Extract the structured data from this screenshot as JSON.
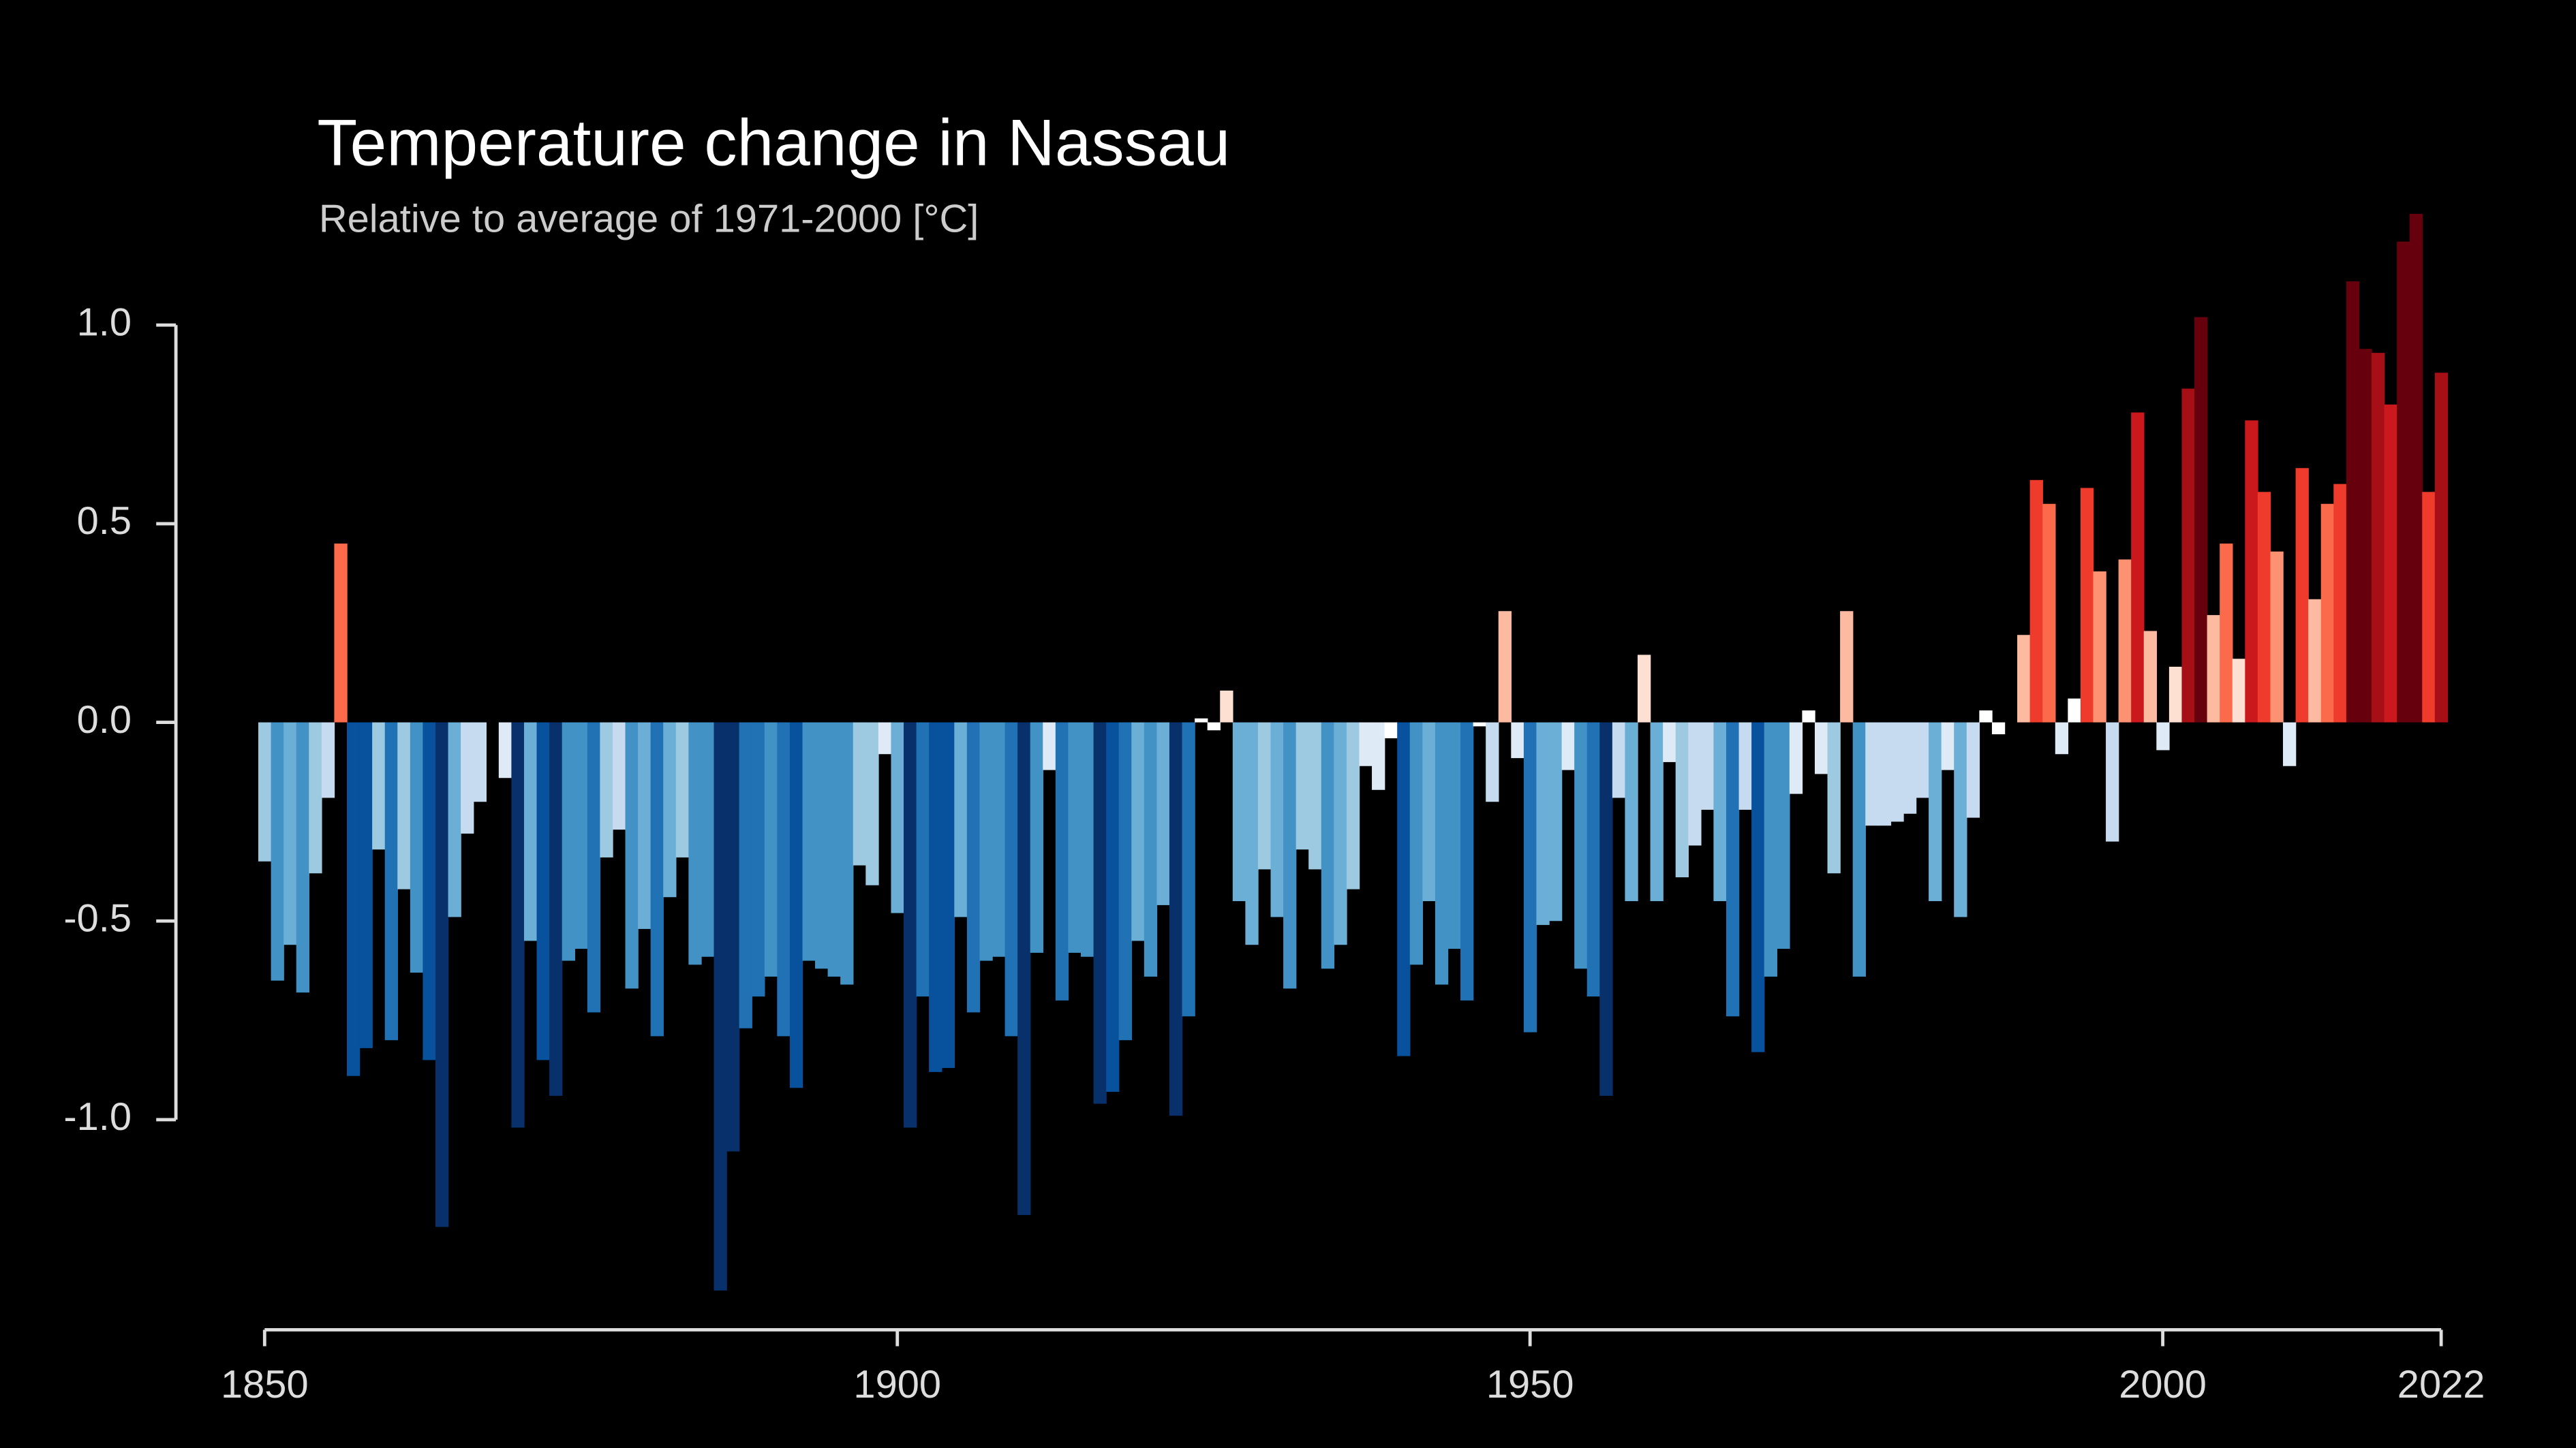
{
  "chart_data": {
    "type": "bar",
    "title": "Temperature change in Nassau",
    "subtitle": "Relative to average of 1971-2000  [°C]",
    "x": [
      1850,
      1851,
      1852,
      1853,
      1854,
      1855,
      1856,
      1857,
      1858,
      1859,
      1860,
      1861,
      1862,
      1863,
      1864,
      1865,
      1866,
      1867,
      1868,
      1869,
      1870,
      1871,
      1872,
      1873,
      1874,
      1875,
      1876,
      1877,
      1878,
      1879,
      1880,
      1881,
      1882,
      1883,
      1884,
      1885,
      1886,
      1887,
      1888,
      1889,
      1890,
      1891,
      1892,
      1893,
      1894,
      1895,
      1896,
      1897,
      1898,
      1899,
      1900,
      1901,
      1902,
      1903,
      1904,
      1905,
      1906,
      1907,
      1908,
      1909,
      1910,
      1911,
      1912,
      1913,
      1914,
      1915,
      1916,
      1917,
      1918,
      1919,
      1920,
      1921,
      1922,
      1923,
      1924,
      1925,
      1926,
      1927,
      1928,
      1929,
      1930,
      1931,
      1932,
      1933,
      1934,
      1935,
      1936,
      1937,
      1938,
      1939,
      1940,
      1941,
      1942,
      1943,
      1944,
      1945,
      1946,
      1947,
      1948,
      1949,
      1950,
      1951,
      1952,
      1953,
      1954,
      1955,
      1956,
      1957,
      1958,
      1959,
      1960,
      1961,
      1962,
      1963,
      1964,
      1965,
      1966,
      1967,
      1968,
      1969,
      1970,
      1971,
      1972,
      1973,
      1974,
      1975,
      1976,
      1977,
      1978,
      1979,
      1980,
      1981,
      1982,
      1983,
      1984,
      1985,
      1986,
      1987,
      1988,
      1989,
      1990,
      1991,
      1992,
      1993,
      1994,
      1995,
      1996,
      1997,
      1998,
      1999,
      2000,
      2001,
      2002,
      2003,
      2004,
      2005,
      2006,
      2007,
      2008,
      2009,
      2010,
      2011,
      2012,
      2013,
      2014,
      2015,
      2016,
      2017,
      2018,
      2019,
      2020,
      2021,
      2022
    ],
    "values": [
      -0.35,
      -0.65,
      -0.56,
      -0.68,
      -0.38,
      -0.19,
      0.45,
      -0.89,
      -0.82,
      -0.32,
      -0.8,
      -0.42,
      -0.63,
      -0.85,
      -1.27,
      -0.49,
      -0.28,
      -0.2,
      null,
      -0.14,
      -1.02,
      -0.55,
      -0.85,
      -0.94,
      -0.6,
      -0.57,
      -0.73,
      -0.34,
      -0.27,
      -0.67,
      -0.52,
      -0.79,
      -0.44,
      -0.34,
      -0.61,
      -0.59,
      -1.43,
      -1.08,
      -0.77,
      -0.69,
      -0.64,
      -0.79,
      -0.92,
      -0.6,
      -0.62,
      -0.64,
      -0.66,
      -0.36,
      -0.41,
      -0.08,
      -0.48,
      -1.02,
      -0.69,
      -0.88,
      -0.87,
      -0.49,
      -0.73,
      -0.6,
      -0.59,
      -0.79,
      -1.24,
      -0.58,
      -0.12,
      -0.7,
      -0.58,
      -0.59,
      -0.96,
      -0.93,
      -0.8,
      -0.55,
      -0.64,
      -0.46,
      -0.99,
      -0.74,
      0.01,
      -0.02,
      0.08,
      -0.45,
      -0.56,
      -0.37,
      -0.49,
      -0.67,
      -0.32,
      -0.37,
      -0.62,
      -0.56,
      -0.42,
      -0.11,
      -0.17,
      -0.04,
      -0.84,
      -0.61,
      -0.45,
      -0.66,
      -0.57,
      -0.7,
      -0.01,
      -0.2,
      0.28,
      -0.09,
      -0.78,
      -0.51,
      -0.5,
      -0.12,
      -0.62,
      -0.69,
      -0.94,
      -0.19,
      -0.45,
      0.17,
      -0.45,
      -0.1,
      -0.39,
      -0.31,
      -0.22,
      -0.45,
      -0.74,
      -0.22,
      -0.83,
      -0.64,
      -0.57,
      -0.18,
      0.03,
      -0.13,
      -0.38,
      0.28,
      -0.64,
      -0.26,
      -0.26,
      -0.25,
      -0.23,
      -0.19,
      -0.45,
      -0.12,
      -0.49,
      -0.24,
      0.03,
      -0.03,
      null,
      0.22,
      0.61,
      0.55,
      -0.08,
      0.06,
      0.59,
      0.38,
      -0.3,
      0.41,
      0.78,
      0.23,
      -0.07,
      0.14,
      0.84,
      1.02,
      0.27,
      0.45,
      0.16,
      0.76,
      0.58,
      0.43,
      -0.11,
      0.64,
      0.31,
      0.55,
      0.6,
      1.11,
      0.94,
      0.93,
      0.8,
      1.21,
      1.28,
      0.58,
      0.88
    ],
    "colormap": [
      "#08306b",
      "#08519c",
      "#2171b5",
      "#4292c6",
      "#6baed6",
      "#9ecae1",
      "#c6dbef",
      "#deebf7",
      "#ffffff",
      "#fee0d2",
      "#fcbba1",
      "#fc9272",
      "#fb6a4a",
      "#ef3b2c",
      "#cb181d",
      "#a50f15",
      "#67000d"
    ],
    "xlim": [
      1850,
      2022
    ],
    "xticks": [
      1850,
      1900,
      1950,
      2000,
      2022
    ],
    "ylim": [
      -1.45,
      1.35
    ],
    "yticks": [
      {
        "value": -1.0,
        "label": "-1.0"
      },
      -0.5,
      {
        "value": 0.0,
        "label": "0.0"
      },
      0.5,
      {
        "value": 1.0,
        "label": "1.0"
      }
    ],
    "grid": false
  }
}
